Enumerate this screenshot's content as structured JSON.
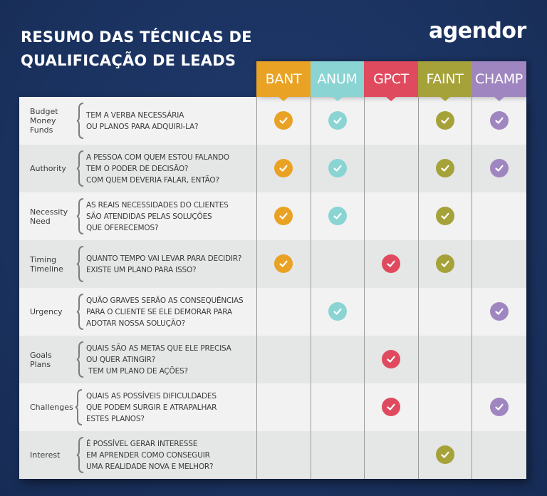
{
  "header": {
    "title_line1": "RESUMO DAS TÉCNICAS DE",
    "title_line2": "QUALIFICAÇÃO DE LEADS",
    "logo": "agendor"
  },
  "colors": {
    "background": "#1C3461",
    "BANT": "#E9A224",
    "ANUM": "#8AD4D3",
    "GPCT": "#E04A5E",
    "FAINT": "#A6A23A",
    "CHAMP": "#A086C0"
  },
  "columns": [
    {
      "label": "BANT",
      "color": "#E9A224"
    },
    {
      "label": "ANUM",
      "color": "#8AD4D3"
    },
    {
      "label": "GPCT",
      "color": "#E04A5E"
    },
    {
      "label": "FAINT",
      "color": "#A6A23A"
    },
    {
      "label": "CHAMP",
      "color": "#A086C0"
    }
  ],
  "rows": [
    {
      "criteria": [
        "Budget",
        "Money",
        "Funds"
      ],
      "question": [
        "TEM A VERBA NECESSÁRIA",
        "OU PLANOS PARA ADQUIRI-LA?"
      ],
      "checks": {
        "BANT": true,
        "ANUM": true,
        "GPCT": false,
        "FAINT": true,
        "CHAMP": true
      }
    },
    {
      "criteria": [
        "Authority"
      ],
      "question": [
        "A PESSOA COM QUEM ESTOU FALANDO",
        "TEM O PODER DE DECISÃO?",
        "COM QUEM DEVERIA FALAR, ENTÃO?"
      ],
      "checks": {
        "BANT": true,
        "ANUM": true,
        "GPCT": false,
        "FAINT": true,
        "CHAMP": true
      }
    },
    {
      "criteria": [
        "Necessity",
        "Need"
      ],
      "question": [
        "AS REAIS NECESSIDADES DO CLIENTES",
        "SÃO ATENDIDAS PELAS SOLUÇÕES",
        "QUE OFERECEMOS?"
      ],
      "checks": {
        "BANT": true,
        "ANUM": true,
        "GPCT": false,
        "FAINT": true,
        "CHAMP": false
      }
    },
    {
      "criteria": [
        "Timing",
        "Timeline"
      ],
      "question": [
        "QUANTO TEMPO VAI LEVAR PARA DECIDIR?",
        "EXISTE UM PLANO PARA ISSO?"
      ],
      "checks": {
        "BANT": true,
        "ANUM": false,
        "GPCT": true,
        "FAINT": true,
        "CHAMP": false
      }
    },
    {
      "criteria": [
        "Urgency"
      ],
      "question": [
        "QUÃO GRAVES SERÃO AS CONSEQUÊNCIAS",
        "PARA O CLIENTE SE ELE DEMORAR PARA",
        "ADOTAR NOSSA SOLUÇÃO?"
      ],
      "checks": {
        "BANT": false,
        "ANUM": true,
        "GPCT": false,
        "FAINT": false,
        "CHAMP": true
      }
    },
    {
      "criteria": [
        "Goals",
        "Plans"
      ],
      "question": [
        "QUAIS SÃO AS METAS QUE ELE PRECISA",
        "OU QUER ATINGIR?",
        " TEM UM PLANO DE AÇÕES?"
      ],
      "checks": {
        "BANT": false,
        "ANUM": false,
        "GPCT": true,
        "FAINT": false,
        "CHAMP": false
      }
    },
    {
      "criteria": [
        "Challenges"
      ],
      "question": [
        "QUAIS AS POSSÍVEIS DIFICULDADES",
        "QUE PODEM SURGIR E ATRAPALHAR",
        "ESTES PLANOS?"
      ],
      "checks": {
        "BANT": false,
        "ANUM": false,
        "GPCT": true,
        "FAINT": false,
        "CHAMP": true
      }
    },
    {
      "criteria": [
        "Interest"
      ],
      "question": [
        "É POSSÍVEL GERAR INTERESSE",
        "EM APRENDER COMO CONSEGUIR",
        "UMA REALIDADE NOVA E MELHOR?"
      ],
      "checks": {
        "BANT": false,
        "ANUM": false,
        "GPCT": false,
        "FAINT": true,
        "CHAMP": false
      }
    }
  ],
  "icons": {
    "check": "check-circle-icon",
    "brace": "curly-brace-icon"
  }
}
